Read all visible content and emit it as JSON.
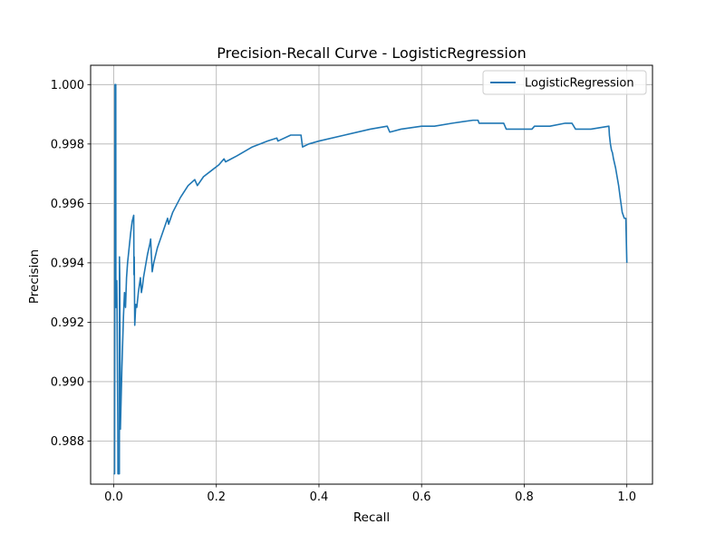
{
  "chart_data": {
    "type": "line",
    "title": "Precision-Recall Curve - LogisticRegression",
    "xlabel": "Recall",
    "ylabel": "Precision",
    "xlim": [
      -0.045,
      1.05
    ],
    "ylim": [
      0.98655,
      1.00065
    ],
    "grid": true,
    "legend_position": "top-right",
    "x_ticks": [
      0.0,
      0.2,
      0.4,
      0.6,
      0.8,
      1.0
    ],
    "x_tick_labels": [
      "0.0",
      "0.2",
      "0.4",
      "0.6",
      "0.8",
      "1.0"
    ],
    "y_ticks": [
      0.988,
      0.99,
      0.992,
      0.994,
      0.996,
      0.998,
      1.0
    ],
    "y_tick_labels": [
      "0.988",
      "0.990",
      "0.992",
      "0.994",
      "0.996",
      "0.998",
      "1.000"
    ],
    "series": [
      {
        "name": "LogisticRegression",
        "color": "#1f77b4",
        "points": [
          [
            0.0,
            0.9869
          ],
          [
            0.0018,
            0.9869
          ],
          [
            0.0025,
            1.0
          ],
          [
            0.004,
            1.0
          ],
          [
            0.0042,
            0.9925
          ],
          [
            0.006,
            0.9934
          ],
          [
            0.0065,
            0.9925
          ],
          [
            0.008,
            0.9884
          ],
          [
            0.0082,
            0.9869
          ],
          [
            0.011,
            0.9869
          ],
          [
            0.0112,
            0.9942
          ],
          [
            0.0118,
            0.9935
          ],
          [
            0.013,
            0.9884
          ],
          [
            0.016,
            0.9905
          ],
          [
            0.019,
            0.9922
          ],
          [
            0.021,
            0.993
          ],
          [
            0.023,
            0.9925
          ],
          [
            0.025,
            0.9935
          ],
          [
            0.027,
            0.994
          ],
          [
            0.03,
            0.9945
          ],
          [
            0.033,
            0.995
          ],
          [
            0.036,
            0.9954
          ],
          [
            0.039,
            0.9956
          ],
          [
            0.0395,
            0.9936
          ],
          [
            0.04,
            0.9942
          ],
          [
            0.0405,
            0.993
          ],
          [
            0.041,
            0.9919
          ],
          [
            0.043,
            0.9926
          ],
          [
            0.045,
            0.9925
          ],
          [
            0.048,
            0.993
          ],
          [
            0.052,
            0.9935
          ],
          [
            0.054,
            0.993
          ],
          [
            0.056,
            0.9932
          ],
          [
            0.058,
            0.9935
          ],
          [
            0.062,
            0.9939
          ],
          [
            0.066,
            0.9943
          ],
          [
            0.07,
            0.9946
          ],
          [
            0.072,
            0.9948
          ],
          [
            0.073,
            0.9944
          ],
          [
            0.075,
            0.9937
          ],
          [
            0.078,
            0.994
          ],
          [
            0.085,
            0.9945
          ],
          [
            0.095,
            0.995
          ],
          [
            0.105,
            0.9955
          ],
          [
            0.107,
            0.9953
          ],
          [
            0.115,
            0.9957
          ],
          [
            0.13,
            0.9962
          ],
          [
            0.145,
            0.9966
          ],
          [
            0.158,
            0.9968
          ],
          [
            0.163,
            0.9966
          ],
          [
            0.175,
            0.9969
          ],
          [
            0.19,
            0.9971
          ],
          [
            0.205,
            0.9973
          ],
          [
            0.215,
            0.9975
          ],
          [
            0.218,
            0.9974
          ],
          [
            0.24,
            0.9976
          ],
          [
            0.27,
            0.9979
          ],
          [
            0.3,
            0.9981
          ],
          [
            0.318,
            0.9982
          ],
          [
            0.32,
            0.9981
          ],
          [
            0.345,
            0.9983
          ],
          [
            0.365,
            0.9983
          ],
          [
            0.368,
            0.9979
          ],
          [
            0.38,
            0.998
          ],
          [
            0.4,
            0.9981
          ],
          [
            0.45,
            0.9983
          ],
          [
            0.5,
            0.9985
          ],
          [
            0.533,
            0.9986
          ],
          [
            0.538,
            0.9984
          ],
          [
            0.56,
            0.9985
          ],
          [
            0.6,
            0.9986
          ],
          [
            0.615,
            0.9986
          ],
          [
            0.625,
            0.9986
          ],
          [
            0.66,
            0.9987
          ],
          [
            0.7,
            0.9988
          ],
          [
            0.71,
            0.9988
          ],
          [
            0.712,
            0.9987
          ],
          [
            0.74,
            0.9987
          ],
          [
            0.76,
            0.9987
          ],
          [
            0.765,
            0.9985
          ],
          [
            0.77,
            0.9985
          ],
          [
            0.79,
            0.9985
          ],
          [
            0.815,
            0.9985
          ],
          [
            0.82,
            0.9986
          ],
          [
            0.85,
            0.9986
          ],
          [
            0.88,
            0.9987
          ],
          [
            0.893,
            0.9987
          ],
          [
            0.9,
            0.9985
          ],
          [
            0.93,
            0.9985
          ],
          [
            0.965,
            0.9986
          ],
          [
            0.966,
            0.9983
          ],
          [
            0.968,
            0.998
          ],
          [
            0.97,
            0.9978
          ],
          [
            0.972,
            0.9977
          ],
          [
            0.974,
            0.9975
          ],
          [
            0.978,
            0.9972
          ],
          [
            0.981,
            0.9969
          ],
          [
            0.984,
            0.9966
          ],
          [
            0.987,
            0.9962
          ],
          [
            0.991,
            0.9957
          ],
          [
            0.995,
            0.9955
          ],
          [
            0.998,
            0.9955
          ],
          [
            1.0,
            0.994
          ]
        ]
      }
    ]
  }
}
